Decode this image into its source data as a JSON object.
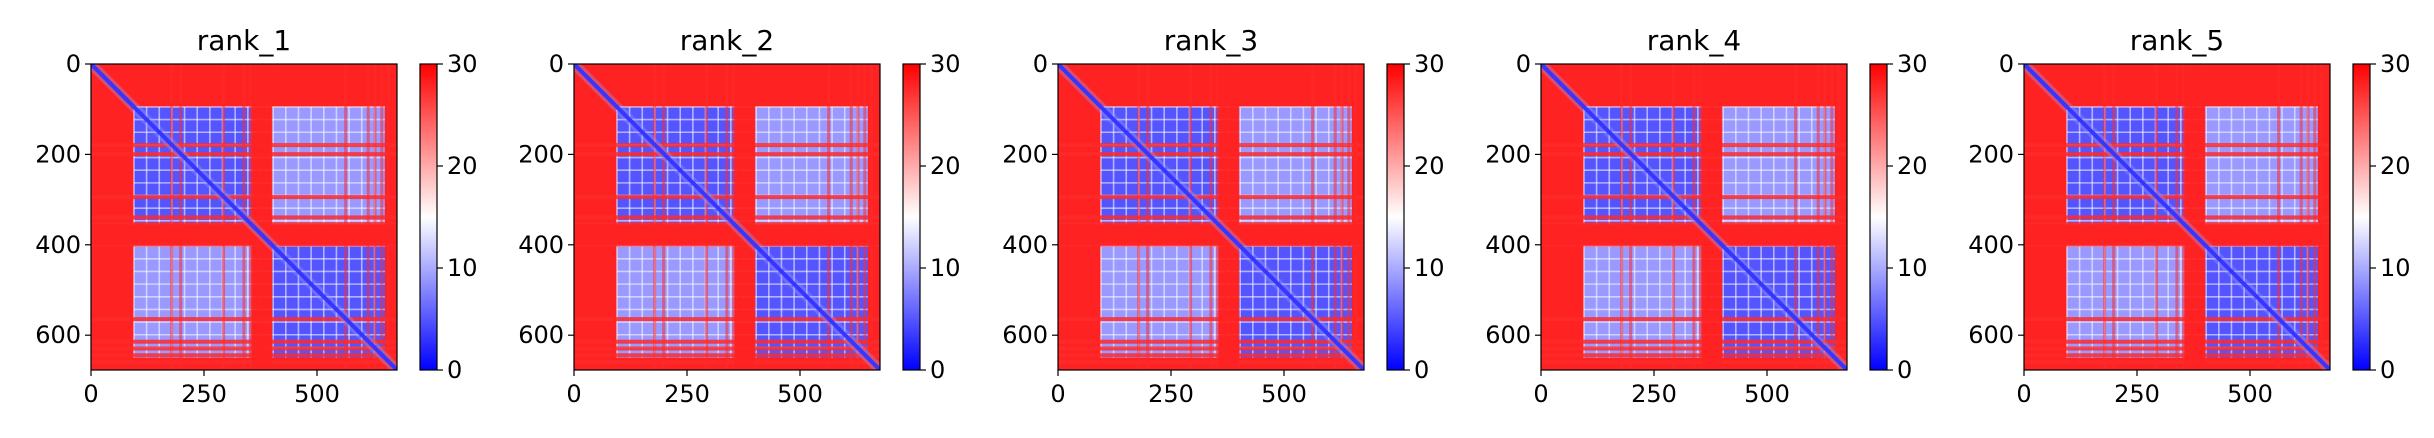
{
  "colors": {
    "low": "#0000ff",
    "mid": "#ffffff",
    "high": "#ff0000",
    "axis": "#000000"
  },
  "chart_data": [
    {
      "type": "heatmap",
      "title": "rank_1",
      "xlabel": "",
      "ylabel": "",
      "xlim": [
        0,
        677
      ],
      "ylim": [
        677,
        0
      ],
      "xticks": [
        0,
        250,
        500
      ],
      "yticks": [
        0,
        200,
        400,
        600
      ],
      "colorbar": {
        "range": [
          0,
          30
        ],
        "ticks": [
          0,
          10,
          20,
          30
        ],
        "colormap": "bwr"
      },
      "description_values": {
        "diagonal": 0,
        "intra_domain": 5,
        "background": 28
      }
    },
    {
      "type": "heatmap",
      "title": "rank_2",
      "xlabel": "",
      "ylabel": "",
      "xlim": [
        0,
        677
      ],
      "ylim": [
        677,
        0
      ],
      "xticks": [
        0,
        250,
        500
      ],
      "yticks": [
        0,
        200,
        400,
        600
      ],
      "colorbar": {
        "range": [
          0,
          30
        ],
        "ticks": [
          0,
          10,
          20,
          30
        ],
        "colormap": "bwr"
      },
      "description_values": {
        "diagonal": 0,
        "intra_domain": 5,
        "background": 28
      }
    },
    {
      "type": "heatmap",
      "title": "rank_3",
      "xlabel": "",
      "ylabel": "",
      "xlim": [
        0,
        677
      ],
      "ylim": [
        677,
        0
      ],
      "xticks": [
        0,
        250,
        500
      ],
      "yticks": [
        0,
        200,
        400,
        600
      ],
      "colorbar": {
        "range": [
          0,
          30
        ],
        "ticks": [
          0,
          10,
          20,
          30
        ],
        "colormap": "bwr"
      },
      "description_values": {
        "diagonal": 0,
        "intra_domain": 5,
        "background": 28
      }
    },
    {
      "type": "heatmap",
      "title": "rank_4",
      "xlabel": "",
      "ylabel": "",
      "xlim": [
        0,
        677
      ],
      "ylim": [
        677,
        0
      ],
      "xticks": [
        0,
        250,
        500
      ],
      "yticks": [
        0,
        200,
        400,
        600
      ],
      "colorbar": {
        "range": [
          0,
          30
        ],
        "ticks": [
          0,
          10,
          20,
          30
        ],
        "colormap": "bwr"
      },
      "description_values": {
        "diagonal": 0,
        "intra_domain": 5,
        "background": 28
      }
    },
    {
      "type": "heatmap",
      "title": "rank_5",
      "xlabel": "",
      "ylabel": "",
      "xlim": [
        0,
        677
      ],
      "ylim": [
        677,
        0
      ],
      "xticks": [
        0,
        250,
        500
      ],
      "yticks": [
        0,
        200,
        400,
        600
      ],
      "colorbar": {
        "range": [
          0,
          30
        ],
        "ticks": [
          0,
          10,
          20,
          30
        ],
        "colormap": "bwr"
      },
      "description_values": {
        "diagonal": 0,
        "intra_domain": 5,
        "background": 28
      }
    }
  ]
}
